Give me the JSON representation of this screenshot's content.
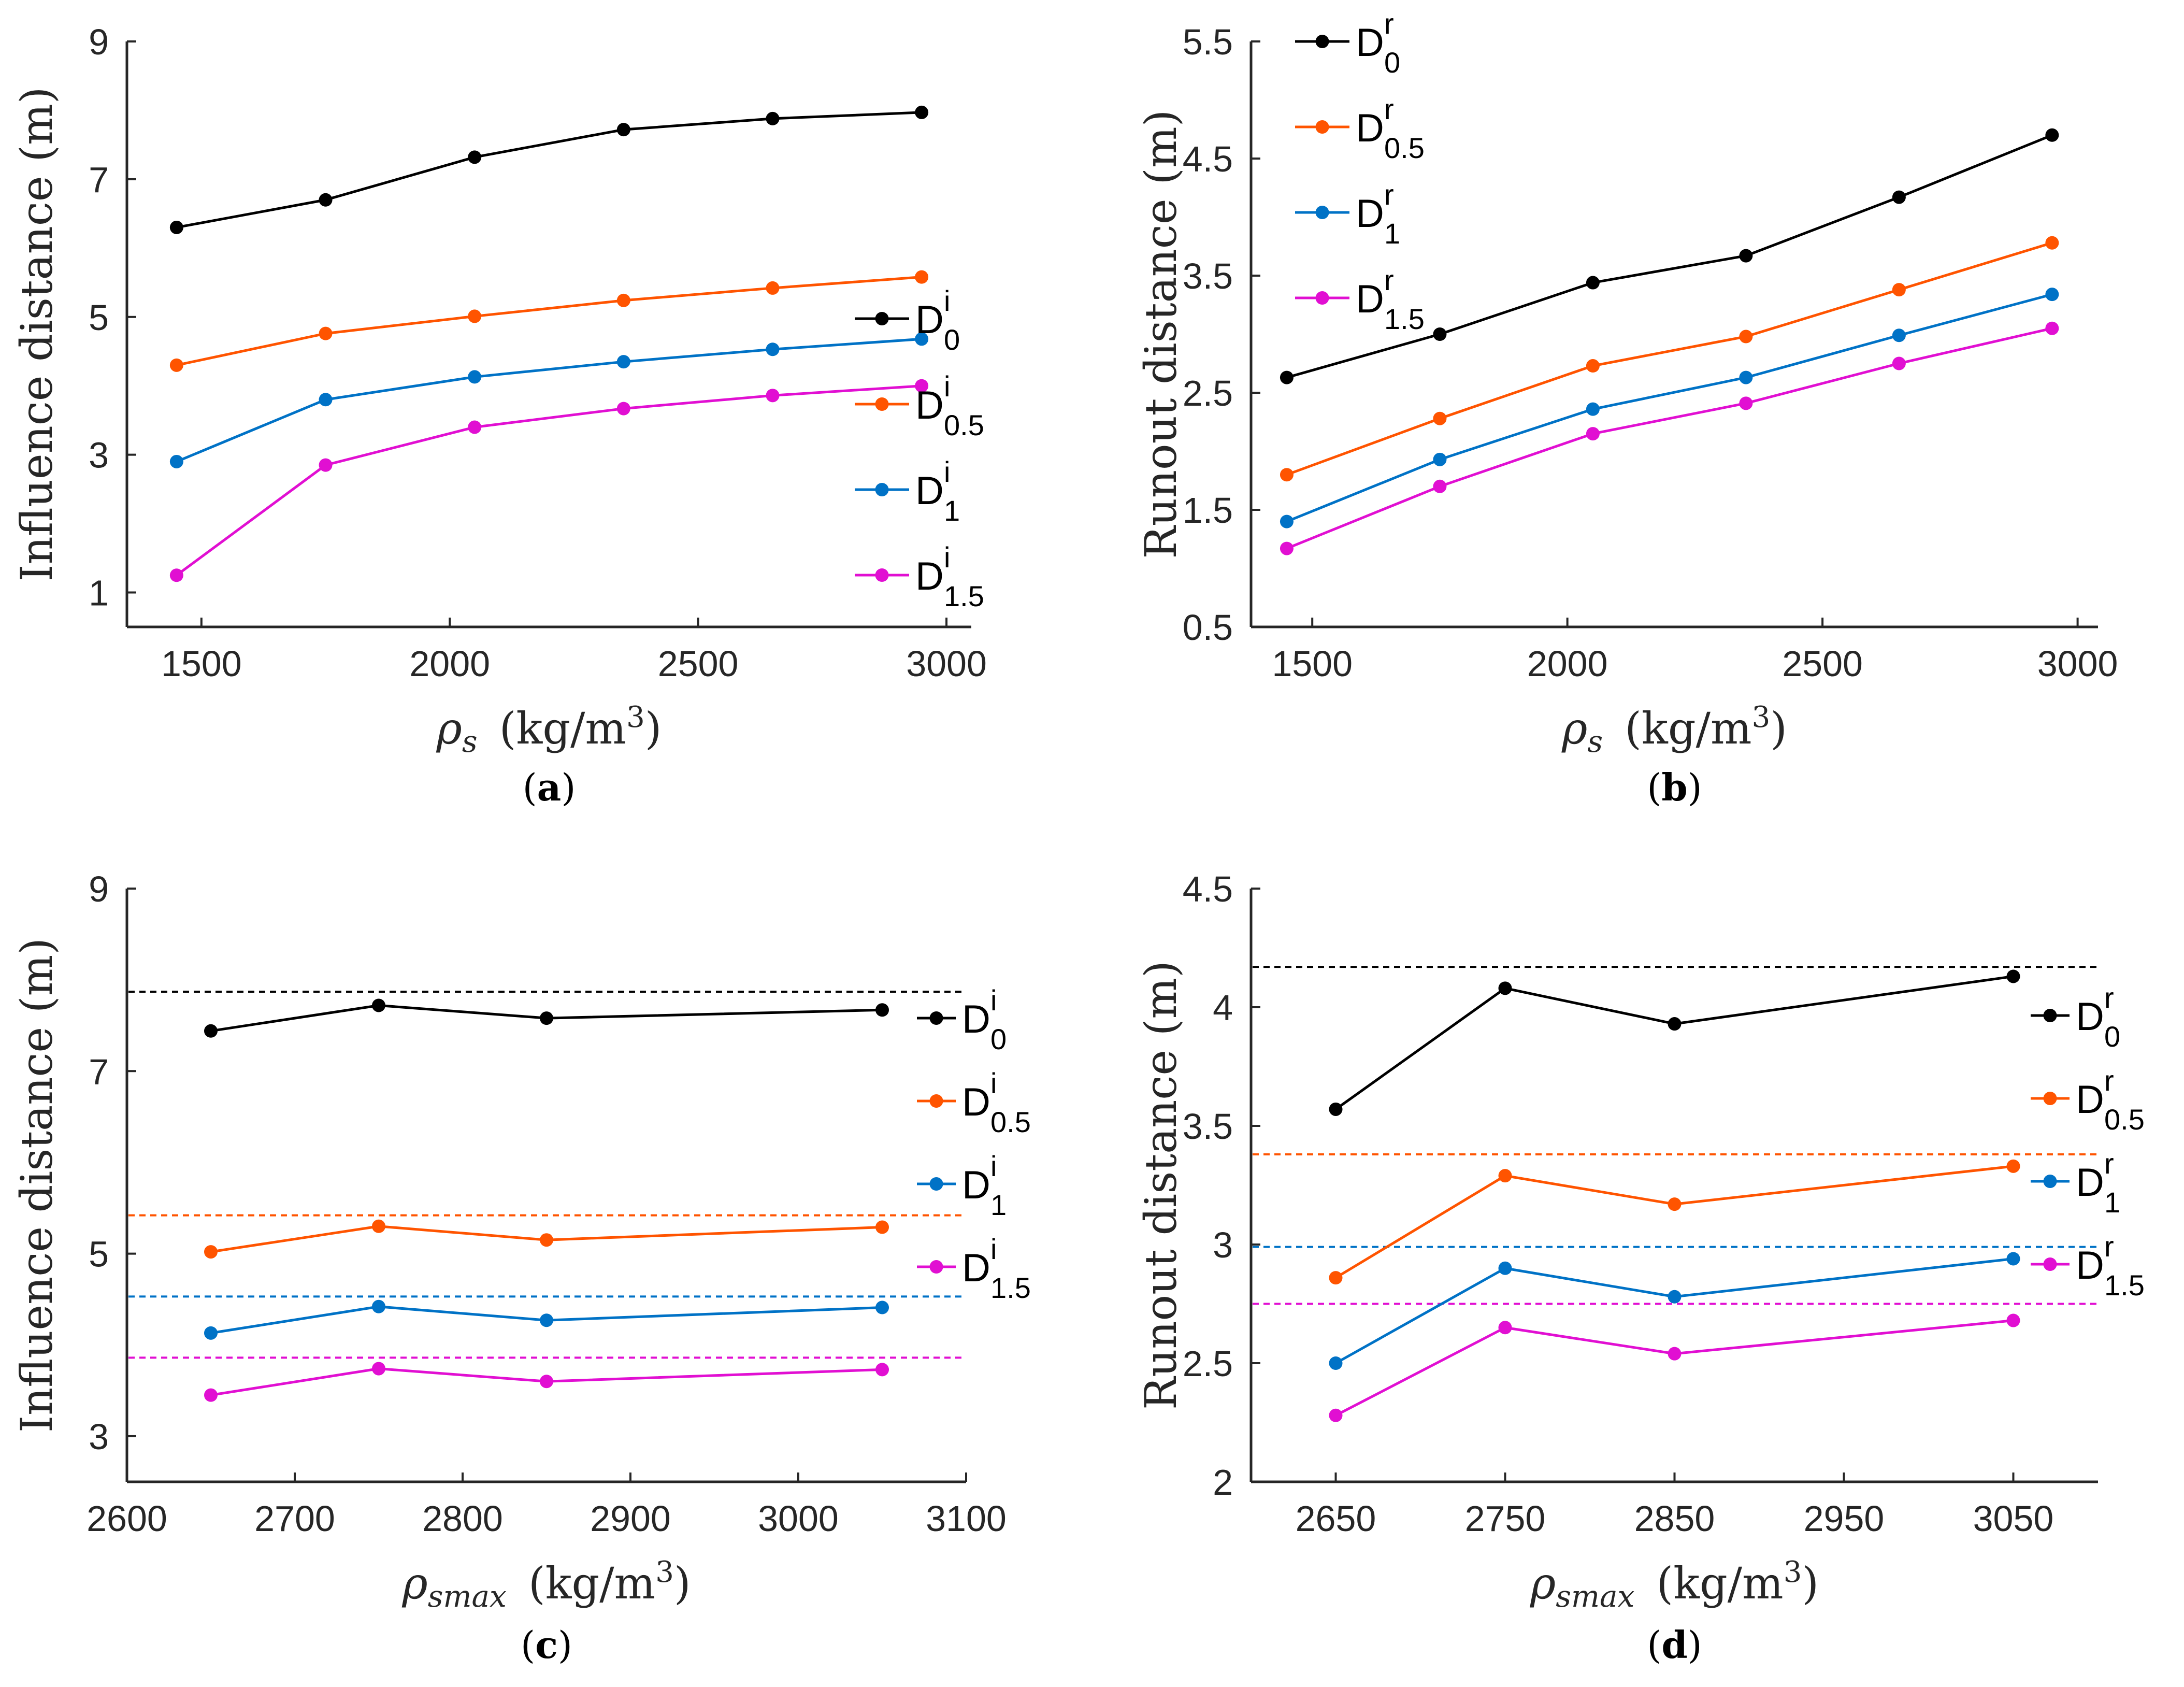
{
  "colors": {
    "black": "#000000",
    "orange": "#ff5400",
    "blue": "#0072c6",
    "magenta": "#e10fd2",
    "axis": "#262626"
  },
  "chart_data": [
    {
      "panel": "a",
      "type": "line",
      "xlabel": {
        "symbol": "ρ",
        "sub": "s",
        "unit": "(kg/m",
        "sup": "3",
        "close": ")"
      },
      "ylabel": "Influence distance (m)",
      "xlim": [
        1350,
        3050
      ],
      "ylim": [
        0.5,
        9
      ],
      "xticks": [
        1500,
        2000,
        2500,
        3000
      ],
      "yticks": [
        1,
        3,
        5,
        7,
        9
      ],
      "x": [
        1450,
        1750,
        2050,
        2350,
        2650,
        2950
      ],
      "series": [
        {
          "name": "D0i",
          "base": "D",
          "sub": "0",
          "sup": "i",
          "color": "#000000",
          "values": [
            6.3,
            6.7,
            7.32,
            7.72,
            7.88,
            7.97
          ]
        },
        {
          "name": "D0.5i",
          "base": "D",
          "sub": "0.5",
          "sup": "i",
          "color": "#ff5400",
          "values": [
            4.3,
            4.76,
            5.01,
            5.24,
            5.42,
            5.58
          ]
        },
        {
          "name": "D1i",
          "base": "D",
          "sub": "1",
          "sup": "i",
          "color": "#0072c6",
          "values": [
            2.9,
            3.8,
            4.13,
            4.35,
            4.53,
            4.68
          ]
        },
        {
          "name": "D1.5i",
          "base": "D",
          "sub": "1.5",
          "sup": "i",
          "color": "#e10fd2",
          "values": [
            1.25,
            2.85,
            3.4,
            3.67,
            3.86,
            4.0
          ]
        }
      ],
      "reference_lines": [],
      "legend": "right"
    },
    {
      "panel": "b",
      "type": "line",
      "xlabel": {
        "symbol": "ρ",
        "sub": "s",
        "unit": "(kg/m",
        "sup": "3",
        "close": ")"
      },
      "ylabel": "Runout distance (m)",
      "xlim": [
        1380,
        3040
      ],
      "ylim": [
        0.5,
        5.5
      ],
      "xticks": [
        1500,
        2000,
        2500,
        3000
      ],
      "yticks": [
        0.5,
        1.5,
        2.5,
        3.5,
        4.5,
        5.5
      ],
      "x": [
        1450,
        1750,
        2050,
        2350,
        2650,
        2950
      ],
      "series": [
        {
          "name": "D0r",
          "base": "D",
          "sub": "0",
          "sup": "r",
          "color": "#000000",
          "values": [
            2.63,
            3.0,
            3.44,
            3.67,
            4.17,
            4.7
          ]
        },
        {
          "name": "D0.5r",
          "base": "D",
          "sub": "0.5",
          "sup": "r",
          "color": "#ff5400",
          "values": [
            1.8,
            2.28,
            2.73,
            2.98,
            3.38,
            3.78
          ]
        },
        {
          "name": "D1r",
          "base": "D",
          "sub": "1",
          "sup": "r",
          "color": "#0072c6",
          "values": [
            1.4,
            1.93,
            2.36,
            2.63,
            2.99,
            3.34
          ]
        },
        {
          "name": "D1.5r",
          "base": "D",
          "sub": "1.5",
          "sup": "r",
          "color": "#e10fd2",
          "values": [
            1.17,
            1.7,
            2.15,
            2.41,
            2.75,
            3.05
          ]
        }
      ],
      "reference_lines": [],
      "legend": "top-left"
    },
    {
      "panel": "c",
      "type": "line",
      "xlabel": {
        "symbol": "ρ",
        "sub": "smax",
        "unit": "(kg/m",
        "sup": "3",
        "close": ")"
      },
      "ylabel": "Influence distance (m)",
      "xlim": [
        2600,
        3100
      ],
      "ylim": [
        2.5,
        9
      ],
      "xticks": [
        2600,
        2700,
        2800,
        2900,
        3000,
        3100
      ],
      "yticks": [
        3,
        5,
        7,
        9
      ],
      "x": [
        2650,
        2750,
        2850,
        3050
      ],
      "series": [
        {
          "name": "D0i",
          "base": "D",
          "sub": "0",
          "sup": "i",
          "color": "#000000",
          "values": [
            7.44,
            7.72,
            7.58,
            7.67
          ]
        },
        {
          "name": "D0.5i",
          "base": "D",
          "sub": "0.5",
          "sup": "i",
          "color": "#ff5400",
          "values": [
            5.02,
            5.3,
            5.15,
            5.29
          ]
        },
        {
          "name": "D1i",
          "base": "D",
          "sub": "1",
          "sup": "i",
          "color": "#0072c6",
          "values": [
            4.13,
            4.42,
            4.27,
            4.41
          ]
        },
        {
          "name": "D1.5i",
          "base": "D",
          "sub": "1.5",
          "sup": "i",
          "color": "#e10fd2",
          "values": [
            3.45,
            3.74,
            3.6,
            3.73
          ]
        }
      ],
      "reference_lines": [
        {
          "color": "#000000",
          "y": 7.87
        },
        {
          "color": "#ff5400",
          "y": 5.42
        },
        {
          "color": "#0072c6",
          "y": 4.53
        },
        {
          "color": "#e10fd2",
          "y": 3.86
        }
      ],
      "legend": "right"
    },
    {
      "panel": "d",
      "type": "line",
      "xlabel": {
        "symbol": "ρ",
        "sub": "smax",
        "unit": "(kg/m",
        "sup": "3",
        "close": ")"
      },
      "ylabel": "Runout distance (m)",
      "xlim": [
        2600,
        3100
      ],
      "ylim": [
        2,
        4.5
      ],
      "xticks": [
        2650,
        2750,
        2850,
        2950,
        3050
      ],
      "yticks": [
        2,
        2.5,
        3,
        3.5,
        4,
        4.5
      ],
      "x": [
        2650,
        2750,
        2850,
        3050
      ],
      "series": [
        {
          "name": "D0r",
          "base": "D",
          "sub": "0",
          "sup": "r",
          "color": "#000000",
          "values": [
            3.57,
            4.08,
            3.93,
            4.13
          ]
        },
        {
          "name": "D0.5r",
          "base": "D",
          "sub": "0.5",
          "sup": "r",
          "color": "#ff5400",
          "values": [
            2.86,
            3.29,
            3.17,
            3.33
          ]
        },
        {
          "name": "D1r",
          "base": "D",
          "sub": "1",
          "sup": "r",
          "color": "#0072c6",
          "values": [
            2.5,
            2.9,
            2.78,
            2.94
          ]
        },
        {
          "name": "D1.5r",
          "base": "D",
          "sub": "1.5",
          "sup": "r",
          "color": "#e10fd2",
          "values": [
            2.28,
            2.65,
            2.54,
            2.68
          ]
        }
      ],
      "reference_lines": [
        {
          "color": "#000000",
          "y": 4.17
        },
        {
          "color": "#ff5400",
          "y": 3.38
        },
        {
          "color": "#0072c6",
          "y": 2.99
        },
        {
          "color": "#e10fd2",
          "y": 2.75
        }
      ],
      "legend": "right"
    }
  ]
}
